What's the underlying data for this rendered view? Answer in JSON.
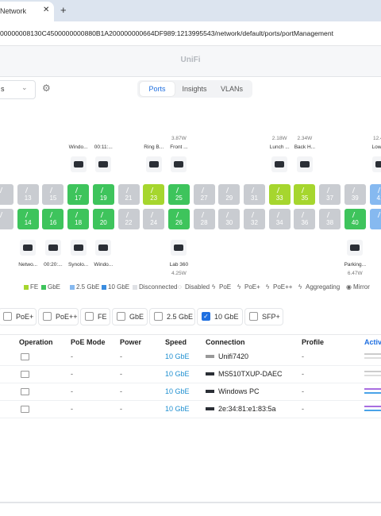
{
  "browser": {
    "tab_title": "Network",
    "new_tab": "+",
    "url": "00000008130C4500000000880B1A200000000664DF989:1213995543/network/default/ports/portManagement"
  },
  "app_title": "UniFi",
  "toolbar": {
    "dropdown": "s",
    "tabs": [
      "Ports",
      "Insights",
      "VLANs"
    ]
  },
  "ports": {
    "top": [
      {
        "number": null,
        "color": "#c9ccd1"
      },
      {
        "number": "13",
        "color": "#c9ccd1"
      },
      {
        "number": "15",
        "color": "#c9ccd1"
      },
      {
        "number": "17",
        "color": "#3ec45c",
        "device": "Windo..."
      },
      {
        "number": "19",
        "color": "#3ec45c",
        "device": "00:11:..."
      },
      {
        "number": "21",
        "color": "#c9ccd1"
      },
      {
        "number": "23",
        "color": "#a6d62e",
        "device": "Ring B..."
      },
      {
        "number": "25",
        "color": "#3ec45c",
        "device": "Front ...",
        "power": "3.87W"
      },
      {
        "number": "27",
        "color": "#c9ccd1"
      },
      {
        "number": "29",
        "color": "#c9ccd1"
      },
      {
        "number": "31",
        "color": "#c9ccd1"
      },
      {
        "number": "33",
        "color": "#a6d62e",
        "device": "Lunch ...",
        "power": "2.18W"
      },
      {
        "number": "35",
        "color": "#a6d62e",
        "device": "Back H...",
        "power": "2.34W"
      },
      {
        "number": "37",
        "color": "#c9ccd1"
      },
      {
        "number": "39",
        "color": "#c9ccd1"
      },
      {
        "number": "41",
        "color": "#86b9f0",
        "device": "Lowe...",
        "power": "12.4..."
      }
    ],
    "bottom": [
      {
        "number": null,
        "color": "#c9ccd1"
      },
      {
        "number": "14",
        "color": "#3ec45c",
        "device": "Netwo..."
      },
      {
        "number": "16",
        "color": "#3ec45c",
        "device": "00:20:..."
      },
      {
        "number": "18",
        "color": "#3ec45c",
        "device": "Synolo..."
      },
      {
        "number": "20",
        "color": "#3ec45c",
        "device": "Windo..."
      },
      {
        "number": "22",
        "color": "#c9ccd1"
      },
      {
        "number": "24",
        "color": "#c9ccd1"
      },
      {
        "number": "26",
        "color": "#3ec45c",
        "device": "Lab 360",
        "power": "4.25W"
      },
      {
        "number": "28",
        "color": "#c9ccd1"
      },
      {
        "number": "30",
        "color": "#c9ccd1"
      },
      {
        "number": "32",
        "color": "#c9ccd1"
      },
      {
        "number": "34",
        "color": "#c9ccd1"
      },
      {
        "number": "36",
        "color": "#c9ccd1"
      },
      {
        "number": "38",
        "color": "#c9ccd1"
      },
      {
        "number": "40",
        "color": "#3ec45c",
        "device": "Parking...",
        "power": "6.47W"
      },
      {
        "number": null,
        "color": "#86b9f0"
      }
    ]
  },
  "legend": [
    {
      "label": "FE",
      "color": "#a6d62e"
    },
    {
      "label": "GbE",
      "color": "#3ec45c"
    },
    {
      "label": "2.5 GbE",
      "color": "#86b9f0"
    },
    {
      "label": "10 GbE",
      "color": "#3a8de0"
    },
    {
      "label": "Disconnected",
      "color": "#dfe1e5"
    },
    {
      "label": "Disabled",
      "color": null
    },
    {
      "label": "PoE",
      "color": null
    },
    {
      "label": "PoE+",
      "color": null
    },
    {
      "label": "PoE++",
      "color": null
    },
    {
      "label": "Aggregating",
      "color": null
    },
    {
      "label": "Mirror",
      "color": null
    }
  ],
  "filters": [
    {
      "label": "PoE+",
      "checked": false
    },
    {
      "label": "PoE++",
      "checked": false
    },
    {
      "label": "FE",
      "checked": false
    },
    {
      "label": "GbE",
      "checked": false
    },
    {
      "label": "2.5 GbE",
      "checked": false
    },
    {
      "label": "10 GbE",
      "checked": true
    },
    {
      "label": "SFP+",
      "checked": false
    }
  ],
  "table": {
    "headers": [
      "Operation",
      "PoE Mode",
      "Power",
      "Speed",
      "Connection",
      "Profile",
      "Activ"
    ],
    "rows": [
      [
        "-",
        "-",
        "10 GbE",
        "Unifi7420",
        "-"
      ],
      [
        "-",
        "-",
        "10 GbE",
        "MS510TXUP-DAEC",
        "-"
      ],
      [
        "-",
        "-",
        "10 GbE",
        "Windows PC",
        "-"
      ],
      [
        "-",
        "-",
        "10 GbE",
        "2e:34:81:e1:83:5a",
        "-"
      ]
    ]
  }
}
